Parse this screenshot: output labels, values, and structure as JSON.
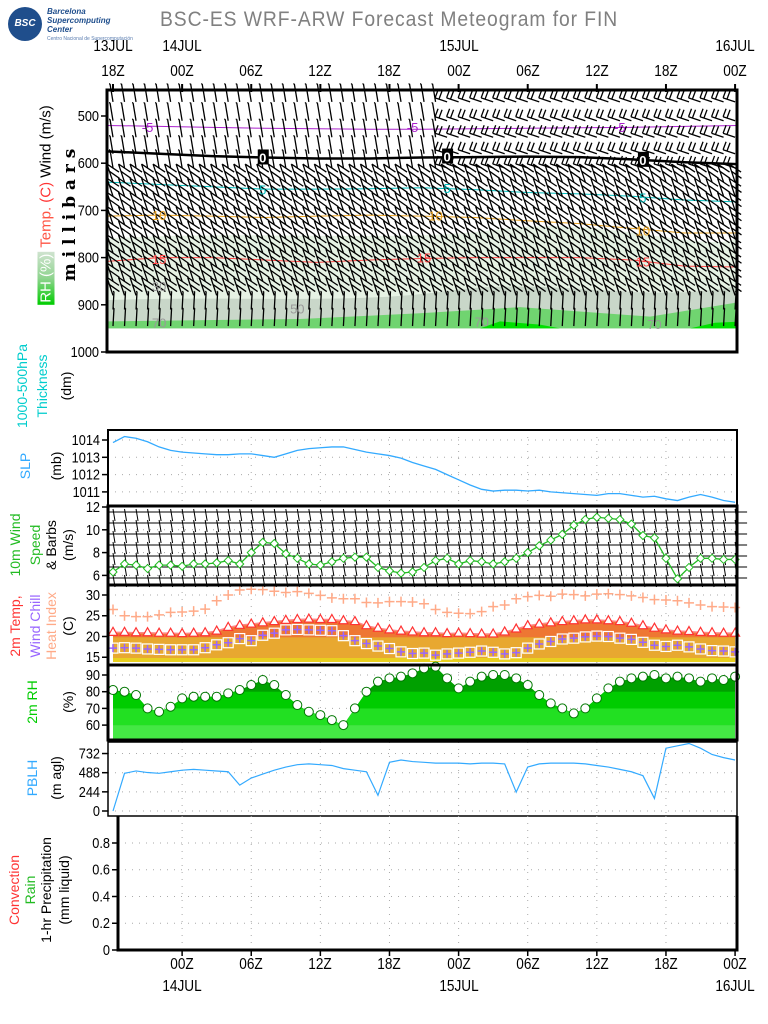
{
  "header": {
    "logo_text": "BSC",
    "logo_name": "Barcelona Supercomputing Center",
    "logo_sub": "Centro Nacional de Supercomputación",
    "title": "BSC-ES WRF-ARW Forecast Meteogram for FIN"
  },
  "time_axis": {
    "top_dates": [
      {
        "hour": 0,
        "label": "13JUL"
      },
      {
        "hour": 6,
        "label": "14JUL"
      },
      {
        "hour": 30,
        "label": "15JUL"
      },
      {
        "hour": 54,
        "label": "16JUL"
      }
    ],
    "top_times": [
      {
        "hour": 0,
        "label": "18Z"
      },
      {
        "hour": 6,
        "label": "00Z"
      },
      {
        "hour": 12,
        "label": "06Z"
      },
      {
        "hour": 18,
        "label": "12Z"
      },
      {
        "hour": 24,
        "label": "18Z"
      },
      {
        "hour": 30,
        "label": "00Z"
      },
      {
        "hour": 36,
        "label": "06Z"
      },
      {
        "hour": 42,
        "label": "12Z"
      },
      {
        "hour": 48,
        "label": "18Z"
      },
      {
        "hour": 54,
        "label": "00Z"
      }
    ],
    "bottom_times": [
      {
        "hour": 6,
        "label": "00Z"
      },
      {
        "hour": 12,
        "label": "06Z"
      },
      {
        "hour": 18,
        "label": "12Z"
      },
      {
        "hour": 24,
        "label": "18Z"
      },
      {
        "hour": 30,
        "label": "00Z"
      },
      {
        "hour": 36,
        "label": "06Z"
      },
      {
        "hour": 42,
        "label": "12Z"
      },
      {
        "hour": 48,
        "label": "18Z"
      },
      {
        "hour": 54,
        "label": "00Z"
      }
    ],
    "bottom_dates": [
      {
        "hour": 6,
        "label": "14JUL"
      },
      {
        "hour": 30,
        "label": "15JUL"
      },
      {
        "hour": 54,
        "label": "16JUL"
      }
    ]
  },
  "labels": {
    "millibars": "m i l l i b a r s",
    "rh": "RH (%)",
    "temp": "Temp.",
    "temp_unit": "(C)",
    "wind": "Wind (m/s)",
    "thickness_1": "1000-500hPa",
    "thickness_2": "Thickness",
    "thickness_3": "(dm)",
    "slp": "SLP",
    "slp_unit": "(mb)",
    "wind10_1": "10m Wind",
    "wind10_2": "Speed",
    "wind10_3": "& Barbs",
    "wind10_4": "(m/s)",
    "t2_1": "2m Temp,",
    "t2_2": "Wind Chill",
    "t2_3": "Heat Index",
    "t2_4": "(C)",
    "rh2_1": "2m RH",
    "rh2_2": "(%)",
    "pblh_1": "PBLH",
    "pblh_2": "(m  agl)",
    "pr_1": "Convection",
    "pr_2": "Rain",
    "pr_3": "1-hr Precipitation",
    "pr_4": "(mm liquid)"
  },
  "colors": {
    "slp": "#33aaff",
    "wind10": "#22bb22",
    "temp": "#ff3333",
    "temp_fill": "#ee7733",
    "windchill": "#9966ff",
    "windchill_fill": "#e8a830",
    "heatindex": "#ffaa88",
    "rh": "#00cc00",
    "pblh": "#33aaff",
    "convection": "#ff3333",
    "rain": "#22bb22",
    "thickness": "#00cccc"
  },
  "chart_data": [
    {
      "type": "contour",
      "name": "upper-air",
      "ylabel": "millibars",
      "yticks": [
        500,
        600,
        700,
        800,
        900,
        1000
      ],
      "ylim": [
        445,
        1000
      ],
      "hours": [
        0,
        54
      ],
      "contour_labels": [
        {
          "hour": 3,
          "p": 525,
          "text": "-5",
          "color": "#aa22cc"
        },
        {
          "hour": 26,
          "p": 525,
          "text": "-5",
          "color": "#aa22cc"
        },
        {
          "hour": 44,
          "p": 525,
          "text": "-5",
          "color": "#aa22cc"
        },
        {
          "hour": 13,
          "p": 590,
          "text": "0",
          "color": "#000000"
        },
        {
          "hour": 29,
          "p": 588,
          "text": "0",
          "color": "#000000"
        },
        {
          "hour": 46,
          "p": 595,
          "text": "0",
          "color": "#000000"
        },
        {
          "hour": 13,
          "p": 658,
          "text": "5",
          "color": "#00bbbb"
        },
        {
          "hour": 29,
          "p": 655,
          "text": "5",
          "color": "#00bbbb"
        },
        {
          "hour": 46,
          "p": 675,
          "text": "5",
          "color": "#00bbbb"
        },
        {
          "hour": 4,
          "p": 712,
          "text": "10",
          "color": "#e8a020"
        },
        {
          "hour": 28,
          "p": 713,
          "text": "10",
          "color": "#e8a020"
        },
        {
          "hour": 46,
          "p": 745,
          "text": "10",
          "color": "#e8a020"
        },
        {
          "hour": 4,
          "p": 805,
          "text": "15",
          "color": "#ff4444"
        },
        {
          "hour": 27,
          "p": 802,
          "text": "15",
          "color": "#ff4444"
        },
        {
          "hour": 46,
          "p": 810,
          "text": "15",
          "color": "#ff4444"
        },
        {
          "hour": 4,
          "p": 862,
          "text": "30",
          "color": "#999999"
        },
        {
          "hour": 16,
          "p": 910,
          "text": "50",
          "color": "#999999"
        },
        {
          "hour": 4,
          "p": 940,
          "text": "70",
          "color": "#999999"
        },
        {
          "hour": 32,
          "p": 938,
          "text": "70",
          "color": "#999999"
        },
        {
          "hour": 47,
          "p": 943,
          "text": "70",
          "color": "#999999"
        }
      ],
      "isotherms": [
        {
          "value": -5,
          "color": "#aa22cc",
          "p": [
            520,
            522,
            524,
            526,
            527,
            528,
            528,
            527,
            526,
            525,
            524,
            522,
            520
          ]
        },
        {
          "value": 0,
          "color": "#000000",
          "p": [
            575,
            580,
            585,
            588,
            590,
            590,
            588,
            587,
            586,
            587,
            592,
            598,
            602
          ]
        },
        {
          "value": 5,
          "color": "#00bbbb",
          "p": [
            640,
            645,
            650,
            655,
            655,
            654,
            652,
            656,
            662,
            665,
            670,
            678,
            682
          ]
        },
        {
          "value": 10,
          "color": "#e8a020",
          "p": [
            712,
            710,
            712,
            715,
            712,
            710,
            712,
            715,
            722,
            728,
            738,
            748,
            748
          ]
        },
        {
          "value": 15,
          "color": "#ff4444",
          "p": [
            808,
            800,
            800,
            805,
            810,
            805,
            802,
            800,
            800,
            800,
            805,
            818,
            820
          ]
        }
      ]
    },
    {
      "type": "line",
      "name": "slp",
      "ylabel": "SLP (mb)",
      "ylim": [
        1010.3,
        1014.6
      ],
      "yticks": [
        1011,
        1012,
        1013,
        1014
      ],
      "values": [
        1013.85,
        1014.2,
        1014.1,
        1013.9,
        1013.6,
        1013.4,
        1013.3,
        1013.25,
        1013.2,
        1013.15,
        1013.15,
        1013.2,
        1013.2,
        1013.1,
        1013.0,
        1013.2,
        1013.4,
        1013.5,
        1013.55,
        1013.6,
        1013.6,
        1013.45,
        1013.3,
        1013.2,
        1013.1,
        1012.95,
        1012.7,
        1012.5,
        1012.3,
        1012.0,
        1011.7,
        1011.4,
        1011.15,
        1011.05,
        1011.1,
        1011.1,
        1011.05,
        1011.1,
        1011.0,
        1010.95,
        1010.9,
        1010.85,
        1010.8,
        1010.9,
        1010.9,
        1010.8,
        1010.7,
        1010.75,
        1010.6,
        1010.5,
        1010.7,
        1010.85,
        1010.7,
        1010.5,
        1010.4
      ]
    },
    {
      "type": "line",
      "name": "wind10",
      "ylabel": "10m Wind Speed & Barbs (m/s)",
      "ylim": [
        5.3,
        12
      ],
      "yticks": [
        6,
        8,
        10,
        12
      ],
      "values": [
        6.3,
        7.0,
        6.9,
        6.6,
        6.9,
        6.9,
        6.8,
        7.0,
        7.0,
        7.1,
        7.3,
        7.0,
        8.0,
        8.9,
        8.8,
        7.9,
        7.5,
        7.0,
        6.9,
        7.2,
        7.5,
        7.6,
        7.6,
        6.7,
        6.4,
        6.2,
        6.3,
        6.7,
        7.3,
        7.5,
        7.0,
        7.3,
        7.2,
        7.0,
        7.2,
        7.5,
        8.0,
        8.6,
        9.1,
        9.6,
        10.4,
        10.9,
        11.1,
        11.0,
        10.9,
        10.5,
        9.5,
        9.3,
        7.5,
        5.7,
        6.7,
        7.5,
        7.5,
        7.4,
        7.4
      ]
    },
    {
      "type": "line",
      "name": "t2",
      "ylabel": "2m Temp, Wind Chill, Heat Index (C)",
      "ylim": [
        13.5,
        32.3
      ],
      "yticks": [
        15,
        20,
        25,
        30
      ],
      "series": [
        {
          "name": "2m Temp",
          "values": [
            21.0,
            21.0,
            20.9,
            20.9,
            20.8,
            20.8,
            20.7,
            20.8,
            20.9,
            21.3,
            22.2,
            22.7,
            23.0,
            23.3,
            23.6,
            23.9,
            24.1,
            24.2,
            24.1,
            24.1,
            23.8,
            23.6,
            22.6,
            22.0,
            21.6,
            21.3,
            21.1,
            20.9,
            20.9,
            20.7,
            20.8,
            20.7,
            20.6,
            20.6,
            21.1,
            21.8,
            22.6,
            23.0,
            23.3,
            23.6,
            23.8,
            24.0,
            24.0,
            23.8,
            23.6,
            23.2,
            22.6,
            22.0,
            21.6,
            21.3,
            21.2,
            21.0,
            20.9,
            20.8,
            20.8
          ]
        },
        {
          "name": "Wind Chill",
          "values": [
            17.2,
            17.3,
            17.2,
            17.0,
            16.9,
            16.8,
            16.8,
            16.8,
            17.3,
            18.0,
            18.5,
            19.5,
            19.0,
            20.3,
            20.8,
            21.6,
            21.7,
            21.6,
            21.5,
            21.4,
            20.2,
            19.0,
            18.3,
            17.7,
            17.1,
            16.3,
            15.9,
            16.0,
            15.5,
            15.8,
            16.0,
            16.2,
            16.5,
            16.2,
            15.8,
            16.1,
            17.2,
            18.2,
            18.8,
            19.4,
            19.6,
            19.9,
            20.1,
            20.0,
            19.6,
            19.3,
            18.6,
            17.9,
            17.6,
            17.9,
            17.5,
            17.0,
            16.6,
            16.5,
            16.3
          ]
        },
        {
          "name": "Heat Index",
          "values": [
            26.5,
            25.0,
            24.8,
            24.8,
            25.2,
            25.8,
            25.9,
            26.1,
            26.6,
            28.6,
            30.0,
            31.2,
            31.4,
            31.3,
            30.9,
            30.6,
            30.8,
            30.4,
            29.9,
            29.3,
            29.1,
            29.1,
            28.2,
            28.1,
            28.4,
            28.4,
            28.3,
            27.9,
            26.5,
            25.8,
            25.6,
            25.5,
            26.0,
            27.2,
            27.6,
            29.1,
            29.6,
            29.9,
            29.7,
            30.2,
            30.1,
            29.8,
            30.2,
            30.3,
            30.1,
            29.8,
            29.4,
            28.9,
            28.8,
            28.6,
            28.1,
            27.6,
            27.2,
            27.1,
            27.0
          ]
        }
      ]
    },
    {
      "type": "area",
      "name": "rh2",
      "ylabel": "2m RH (%)",
      "ylim": [
        50,
        96
      ],
      "yticks": [
        60,
        70,
        80,
        90
      ],
      "values": [
        81,
        80,
        78,
        70,
        68,
        71,
        76,
        77,
        77,
        77,
        79,
        81,
        84,
        87,
        84,
        78,
        72,
        68,
        66,
        63,
        60,
        70,
        80,
        86,
        88,
        89,
        91,
        94,
        95,
        88,
        82,
        86,
        89,
        90,
        90,
        88,
        84,
        78,
        73,
        70,
        67,
        70,
        76,
        82,
        86,
        88,
        89,
        90,
        88,
        89,
        88,
        86,
        88,
        87,
        89
      ]
    },
    {
      "type": "line",
      "name": "pblh",
      "ylabel": "PBLH (m agl)",
      "ylim": [
        -60,
        900
      ],
      "yticks": [
        0,
        244,
        488,
        732
      ],
      "values": [
        0,
        480,
        510,
        490,
        480,
        500,
        520,
        530,
        520,
        510,
        500,
        330,
        420,
        470,
        520,
        560,
        590,
        600,
        590,
        580,
        540,
        520,
        500,
        200,
        620,
        650,
        630,
        620,
        610,
        610,
        610,
        600,
        610,
        610,
        600,
        240,
        560,
        600,
        610,
        610,
        610,
        600,
        580,
        560,
        530,
        500,
        450,
        160,
        800,
        830,
        860,
        800,
        720,
        680,
        650
      ]
    },
    {
      "type": "bar",
      "name": "precip",
      "ylabel": "1-hr Precipitation (mm liquid)",
      "ylim": [
        0,
        0.95
      ],
      "yticks": [
        0,
        0.2,
        0.4,
        0.6,
        0.8
      ],
      "series": [
        {
          "name": "Convection",
          "values": []
        },
        {
          "name": "Rain",
          "values": []
        }
      ]
    }
  ]
}
